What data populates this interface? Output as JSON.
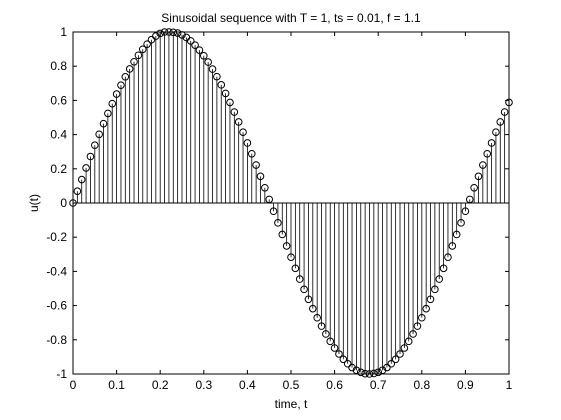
{
  "chart_data": {
    "type": "stem",
    "title": "Sinusoidal sequence with T = 1, ts = 0.01, f = 1.1",
    "xlabel": "time, t",
    "ylabel": "u(t)",
    "xlim": [
      0,
      1
    ],
    "ylim": [
      -1,
      1
    ],
    "xticks": [
      0,
      0.1,
      0.2,
      0.3,
      0.4,
      0.5,
      0.6,
      0.7,
      0.8,
      0.9,
      1
    ],
    "xtick_labels": [
      "0",
      "0.1",
      "0.2",
      "0.3",
      "0.4",
      "0.5",
      "0.6",
      "0.7",
      "0.8",
      "0.9",
      "1"
    ],
    "yticks": [
      -1,
      -0.8,
      -0.6,
      -0.4,
      -0.2,
      0,
      0.2,
      0.4,
      0.6,
      0.8,
      1
    ],
    "ytick_labels": [
      "-1",
      "-0.8",
      "-0.6",
      "-0.4",
      "-0.2",
      "0",
      "0.2",
      "0.4",
      "0.6",
      "0.8",
      "1"
    ],
    "grid": false,
    "marker": "circle-open",
    "color": "#000000",
    "series": [
      {
        "x": [
          0,
          0.01,
          0.02,
          0.03,
          0.04,
          0.05,
          0.06,
          0.07,
          0.08,
          0.09,
          0.1,
          0.11,
          0.12,
          0.13,
          0.14,
          0.15,
          0.16,
          0.17,
          0.18,
          0.19,
          0.2,
          0.21,
          0.22,
          0.23,
          0.24,
          0.25,
          0.26,
          0.27,
          0.28,
          0.29,
          0.3,
          0.31,
          0.32,
          0.33,
          0.34,
          0.35,
          0.36,
          0.37,
          0.38,
          0.39,
          0.4,
          0.41,
          0.42,
          0.43,
          0.44,
          0.45,
          0.46,
          0.47,
          0.48,
          0.49,
          0.5,
          0.51,
          0.52,
          0.53,
          0.54,
          0.55,
          0.56,
          0.57,
          0.58,
          0.59,
          0.6,
          0.61,
          0.62,
          0.63,
          0.64,
          0.65,
          0.66,
          0.67,
          0.68,
          0.69,
          0.7,
          0.71,
          0.72,
          0.73,
          0.74,
          0.75,
          0.76,
          0.77,
          0.78,
          0.79,
          0.8,
          0.81,
          0.82,
          0.83,
          0.84,
          0.85,
          0.86,
          0.87,
          0.88,
          0.89,
          0.9,
          0.91,
          0.92,
          0.93,
          0.94,
          0.95,
          0.96,
          0.97,
          0.98,
          0.99,
          1
        ],
        "y": [
          0,
          0.069,
          0.137,
          0.205,
          0.272,
          0.338,
          0.402,
          0.464,
          0.524,
          0.581,
          0.637,
          0.689,
          0.738,
          0.784,
          0.826,
          0.864,
          0.899,
          0.929,
          0.955,
          0.976,
          0.992,
          1.0,
          1.0,
          0.998,
          0.994,
          0.983,
          0.968,
          0.948,
          0.923,
          0.894,
          0.861,
          0.824,
          0.783,
          0.739,
          0.691,
          0.641,
          0.588,
          0.532,
          0.474,
          0.414,
          0.351,
          0.288,
          0.222,
          0.156,
          0.089,
          0.021,
          -0.048,
          -0.116,
          -0.184,
          -0.251,
          -0.317,
          -0.382,
          -0.445,
          -0.505,
          -0.563,
          -0.618,
          -0.671,
          -0.72,
          -0.766,
          -0.809,
          -0.848,
          -0.883,
          -0.914,
          -0.94,
          -0.962,
          -0.978,
          -0.99,
          -0.998,
          -1.0,
          -0.997,
          -0.99,
          -0.978,
          -0.962,
          -0.94,
          -0.914,
          -0.883,
          -0.848,
          -0.809,
          -0.766,
          -0.72,
          -0.671,
          -0.618,
          -0.563,
          -0.505,
          -0.445,
          -0.382,
          -0.317,
          -0.251,
          -0.184,
          -0.116,
          -0.048,
          0.021,
          0.089,
          0.156,
          0.222,
          0.288,
          0.351,
          0.414,
          0.474,
          0.532,
          0.588
        ]
      }
    ]
  }
}
